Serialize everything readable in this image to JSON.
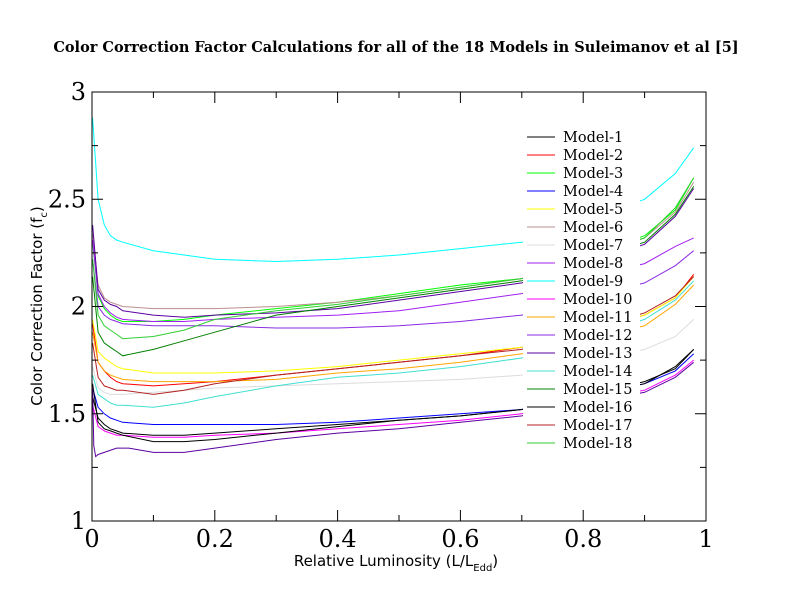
{
  "chart_data": {
    "type": "line",
    "title": "Color Correction Factor Calculations for all of the 18 Models in Suleimanov et al [5]",
    "xlabel": {
      "main": "Relative Luminosity (L/L",
      "sub": "Edd",
      "close": ")"
    },
    "ylabel": {
      "main": "Color Correction Factor (f",
      "sub": "c",
      "close": ")"
    },
    "xlim": [
      0,
      1
    ],
    "ylim": [
      1,
      3
    ],
    "xticks": [
      "0",
      "0.2",
      "0.4",
      "0.6",
      "0.8",
      "1"
    ],
    "yticks": [
      "1",
      "1.5",
      "2",
      "2.5",
      "3"
    ],
    "grid": false,
    "legend_position": "top-right",
    "x": [
      0.001,
      0.01,
      0.02,
      0.03,
      0.04,
      0.05,
      0.1,
      0.15,
      0.2,
      0.3,
      0.4,
      0.5,
      0.6,
      0.7,
      0.9,
      0.95,
      0.98
    ],
    "series": [
      {
        "name": "Model-1",
        "color": "#000000",
        "values": [
          1.58,
          1.48,
          1.45,
          1.43,
          1.42,
          1.41,
          1.4,
          1.4,
          1.41,
          1.43,
          1.45,
          1.47,
          1.49,
          1.52,
          1.65,
          1.71,
          1.8
        ]
      },
      {
        "name": "Model-2",
        "color": "#ff0000",
        "values": [
          1.92,
          1.74,
          1.7,
          1.67,
          1.65,
          1.64,
          1.63,
          1.64,
          1.65,
          1.68,
          1.71,
          1.74,
          1.77,
          1.81,
          1.96,
          2.04,
          2.15
        ]
      },
      {
        "name": "Model-3",
        "color": "#00ff00",
        "values": [
          2.3,
          2.05,
          1.99,
          1.96,
          1.94,
          1.93,
          1.93,
          1.94,
          1.96,
          1.99,
          2.02,
          2.06,
          2.1,
          2.13,
          2.33,
          2.45,
          2.6
        ]
      },
      {
        "name": "Model-4",
        "color": "#0000ff",
        "values": [
          1.62,
          1.53,
          1.5,
          1.48,
          1.47,
          1.46,
          1.45,
          1.45,
          1.45,
          1.45,
          1.46,
          1.48,
          1.5,
          1.52,
          1.64,
          1.7,
          1.78
        ]
      },
      {
        "name": "Model-5",
        "color": "#ffff00",
        "values": [
          1.94,
          1.79,
          1.76,
          1.74,
          1.72,
          1.71,
          1.69,
          1.69,
          1.69,
          1.7,
          1.72,
          1.75,
          1.78,
          1.81,
          1.96,
          2.04,
          2.14
        ]
      },
      {
        "name": "Model-6",
        "color": "#bc8f8f",
        "values": [
          2.34,
          2.1,
          2.04,
          2.02,
          2.01,
          2.0,
          1.99,
          1.99,
          1.99,
          2.0,
          2.02,
          2.05,
          2.09,
          2.13,
          2.32,
          2.44,
          2.58
        ]
      },
      {
        "name": "Model-7",
        "color": "#dcdcdc",
        "values": [
          1.72,
          1.62,
          1.6,
          1.59,
          1.59,
          1.59,
          1.6,
          1.61,
          1.62,
          1.63,
          1.64,
          1.65,
          1.66,
          1.68,
          1.8,
          1.86,
          1.94
        ]
      },
      {
        "name": "Model-8",
        "color": "#a020f0",
        "values": [
          2.31,
          2.06,
          2.0,
          1.97,
          1.95,
          1.94,
          1.93,
          1.93,
          1.94,
          1.95,
          1.96,
          1.98,
          2.02,
          2.06,
          2.2,
          2.28,
          2.32
        ]
      },
      {
        "name": "Model-9",
        "color": "#00ffff",
        "values": [
          2.88,
          2.5,
          2.38,
          2.33,
          2.31,
          2.3,
          2.26,
          2.24,
          2.22,
          2.21,
          2.22,
          2.24,
          2.27,
          2.3,
          2.5,
          2.62,
          2.74
        ]
      },
      {
        "name": "Model-10",
        "color": "#ff00ff",
        "values": [
          1.54,
          1.44,
          1.42,
          1.41,
          1.4,
          1.4,
          1.39,
          1.39,
          1.4,
          1.41,
          1.43,
          1.45,
          1.47,
          1.5,
          1.61,
          1.68,
          1.75
        ]
      },
      {
        "name": "Model-11",
        "color": "#ffa500",
        "values": [
          1.88,
          1.74,
          1.7,
          1.68,
          1.67,
          1.66,
          1.65,
          1.65,
          1.65,
          1.66,
          1.69,
          1.71,
          1.74,
          1.78,
          1.91,
          2.01,
          2.1
        ]
      },
      {
        "name": "Model-12",
        "color": "#8a2be2",
        "values": [
          2.22,
          2.0,
          1.96,
          1.94,
          1.93,
          1.92,
          1.91,
          1.91,
          1.91,
          1.9,
          1.9,
          1.91,
          1.93,
          1.96,
          2.11,
          2.19,
          2.26
        ]
      },
      {
        "name": "Model-13",
        "color": "#5a00a0",
        "values": [
          2.38,
          2.08,
          2.03,
          2.01,
          2.0,
          1.98,
          1.96,
          1.95,
          1.96,
          1.97,
          1.99,
          2.03,
          2.07,
          2.11,
          2.29,
          2.42,
          2.55
        ]
      },
      {
        "name": "Model-14",
        "color": "#40e0d0",
        "values": [
          1.68,
          1.59,
          1.57,
          1.55,
          1.54,
          1.54,
          1.53,
          1.55,
          1.58,
          1.63,
          1.67,
          1.69,
          1.72,
          1.76,
          1.94,
          2.03,
          2.12
        ]
      },
      {
        "name": "Model-15",
        "color": "#008000",
        "values": [
          2.14,
          1.88,
          1.83,
          1.81,
          1.79,
          1.77,
          1.8,
          1.84,
          1.88,
          1.96,
          2.0,
          2.04,
          2.08,
          2.12,
          2.3,
          2.43,
          2.56
        ]
      },
      {
        "name": "Model-16",
        "color": "#000000",
        "values": [
          1.64,
          1.46,
          1.43,
          1.42,
          1.41,
          1.4,
          1.37,
          1.37,
          1.38,
          1.41,
          1.44,
          1.47,
          1.49,
          1.52,
          1.64,
          1.72,
          1.8
        ]
      },
      {
        "name": "Model-17",
        "color": "#b22222",
        "values": [
          1.83,
          1.67,
          1.63,
          1.62,
          1.61,
          1.61,
          1.59,
          1.61,
          1.64,
          1.68,
          1.71,
          1.74,
          1.77,
          1.8,
          1.97,
          2.05,
          2.14
        ]
      },
      {
        "name": "Model-18",
        "color": "#32cd32",
        "values": [
          2.22,
          1.96,
          1.91,
          1.89,
          1.87,
          1.85,
          1.86,
          1.89,
          1.94,
          1.98,
          2.01,
          2.05,
          2.09,
          2.13,
          2.32,
          2.46,
          2.6
        ]
      }
    ],
    "special_series": [
      {
        "color": "#5a00a0",
        "x": [
          0.001,
          0.003,
          0.006,
          0.01,
          0.02,
          0.04,
          0.06,
          0.1,
          0.15,
          0.2,
          0.3,
          0.4,
          0.5,
          0.6,
          0.7,
          0.9,
          0.95,
          0.98
        ],
        "values": [
          1.62,
          1.35,
          1.3,
          1.31,
          1.32,
          1.34,
          1.34,
          1.32,
          1.32,
          1.34,
          1.38,
          1.41,
          1.43,
          1.46,
          1.49,
          1.6,
          1.67,
          1.74
        ]
      }
    ]
  }
}
